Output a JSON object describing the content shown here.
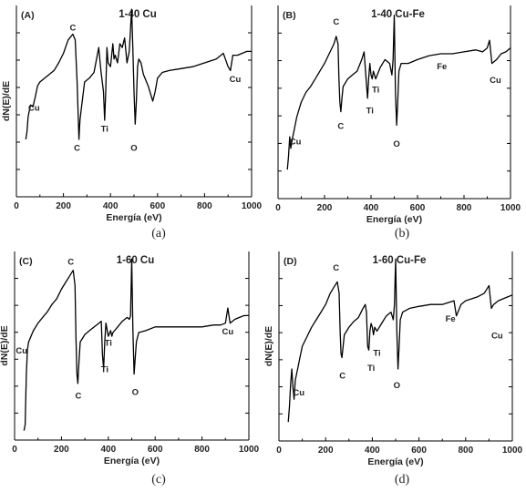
{
  "chart_data": [
    {
      "type": "line",
      "panel": "(A)",
      "title": "1-40 Cu",
      "caption": "(a)",
      "xlabel": "Energía (eV)",
      "ylabel": "dN(E)/dE",
      "xlim": [
        0,
        1000
      ],
      "xticks": [
        0,
        200,
        400,
        600,
        800,
        1000
      ],
      "grid": false,
      "series": [
        {
          "x": [
            40,
            45,
            50,
            60,
            70,
            80,
            90,
            100,
            120,
            140,
            160,
            180,
            200,
            220,
            240,
            250,
            258,
            262,
            266,
            270,
            278,
            290,
            310,
            330,
            350,
            360,
            370,
            375,
            380,
            385,
            390,
            400,
            410,
            415,
            420,
            430,
            440,
            450,
            460,
            470,
            480,
            490,
            495,
            500,
            505,
            510,
            515,
            520,
            530,
            540,
            560,
            580,
            590,
            600,
            620,
            650,
            700,
            750,
            800,
            850,
            880,
            900,
            910,
            920,
            940,
            960,
            980,
            1000
          ],
          "y": [
            0.3,
            0.34,
            0.42,
            0.48,
            0.47,
            0.52,
            0.58,
            0.6,
            0.62,
            0.64,
            0.66,
            0.7,
            0.75,
            0.82,
            0.85,
            0.82,
            0.6,
            0.45,
            0.3,
            0.4,
            0.48,
            0.6,
            0.62,
            0.65,
            0.78,
            0.65,
            0.55,
            0.4,
            0.55,
            0.78,
            0.7,
            0.68,
            0.8,
            0.72,
            0.74,
            0.7,
            0.8,
            0.78,
            0.83,
            0.7,
            0.76,
            0.98,
            0.78,
            0.55,
            0.38,
            0.5,
            0.68,
            0.72,
            0.7,
            0.64,
            0.58,
            0.5,
            0.55,
            0.62,
            0.65,
            0.66,
            0.67,
            0.68,
            0.7,
            0.72,
            0.75,
            0.68,
            0.66,
            0.74,
            0.74,
            0.75,
            0.76,
            0.76
          ]
        }
      ],
      "annotations": [
        {
          "text": "Cu",
          "x": 75,
          "y": 0.45
        },
        {
          "text": "C",
          "x": 240,
          "y": 0.87
        },
        {
          "text": "C",
          "x": 258,
          "y": 0.24
        },
        {
          "text": "Ti",
          "x": 375,
          "y": 0.34
        },
        {
          "text": "O",
          "x": 500,
          "y": 0.24
        },
        {
          "text": "Cu",
          "x": 930,
          "y": 0.6
        }
      ]
    },
    {
      "type": "line",
      "panel": "(B)",
      "title": "1-40 Cu-Fe",
      "caption": "(b)",
      "xlabel": "Energía (eV)",
      "ylabel": "",
      "xlim": [
        0,
        1000
      ],
      "xticks": [
        0,
        200,
        400,
        600,
        800,
        1000
      ],
      "grid": false,
      "series": [
        {
          "x": [
            40,
            45,
            50,
            55,
            60,
            70,
            80,
            90,
            100,
            120,
            140,
            160,
            180,
            200,
            220,
            240,
            250,
            258,
            262,
            266,
            270,
            275,
            280,
            300,
            320,
            340,
            360,
            370,
            380,
            385,
            390,
            395,
            400,
            405,
            410,
            420,
            440,
            460,
            480,
            490,
            495,
            500,
            505,
            510,
            515,
            520,
            530,
            560,
            600,
            650,
            700,
            750,
            800,
            850,
            880,
            900,
            910,
            920,
            940,
            960,
            980,
            1000
          ],
          "y": [
            0.15,
            0.22,
            0.32,
            0.26,
            0.3,
            0.36,
            0.42,
            0.46,
            0.5,
            0.55,
            0.58,
            0.62,
            0.66,
            0.7,
            0.75,
            0.8,
            0.84,
            0.8,
            0.62,
            0.5,
            0.45,
            0.52,
            0.58,
            0.62,
            0.64,
            0.66,
            0.72,
            0.76,
            0.6,
            0.52,
            0.62,
            0.7,
            0.64,
            0.62,
            0.66,
            0.62,
            0.68,
            0.72,
            0.7,
            0.64,
            0.72,
            0.95,
            0.55,
            0.38,
            0.5,
            0.66,
            0.7,
            0.7,
            0.72,
            0.74,
            0.75,
            0.75,
            0.76,
            0.77,
            0.76,
            0.78,
            0.82,
            0.7,
            0.72,
            0.75,
            0.76,
            0.78
          ]
        }
      ],
      "annotations": [
        {
          "text": "Cu",
          "x": 75,
          "y": 0.28
        },
        {
          "text": "C",
          "x": 250,
          "y": 0.9
        },
        {
          "text": "C",
          "x": 270,
          "y": 0.36
        },
        {
          "text": "Ti",
          "x": 420,
          "y": 0.55
        },
        {
          "text": "Ti",
          "x": 395,
          "y": 0.44
        },
        {
          "text": "O",
          "x": 510,
          "y": 0.27
        },
        {
          "text": "Fe",
          "x": 705,
          "y": 0.67
        },
        {
          "text": "Cu",
          "x": 935,
          "y": 0.6
        }
      ]
    },
    {
      "type": "line",
      "panel": "(C)",
      "title": "1-60 Cu",
      "caption": "(c)",
      "xlabel": "Energía (eV)",
      "ylabel": "dN(E)/dE",
      "xlim": [
        0,
        1000
      ],
      "xticks": [
        0,
        200,
        400,
        600,
        800,
        1000
      ],
      "grid": false,
      "series": [
        {
          "x": [
            40,
            45,
            50,
            55,
            60,
            70,
            80,
            100,
            120,
            140,
            160,
            180,
            200,
            220,
            240,
            250,
            258,
            262,
            266,
            270,
            275,
            280,
            300,
            320,
            340,
            360,
            370,
            375,
            380,
            385,
            390,
            400,
            410,
            415,
            420,
            440,
            460,
            480,
            490,
            495,
            500,
            505,
            510,
            515,
            520,
            530,
            560,
            600,
            650,
            700,
            750,
            800,
            850,
            880,
            900,
            910,
            920,
            940,
            960,
            980,
            1000
          ],
          "y": [
            0.05,
            0.08,
            0.35,
            0.48,
            0.52,
            0.55,
            0.58,
            0.62,
            0.65,
            0.68,
            0.72,
            0.75,
            0.8,
            0.84,
            0.88,
            0.9,
            0.82,
            0.55,
            0.35,
            0.3,
            0.42,
            0.52,
            0.56,
            0.58,
            0.6,
            0.62,
            0.63,
            0.45,
            0.38,
            0.52,
            0.62,
            0.55,
            0.58,
            0.55,
            0.57,
            0.6,
            0.63,
            0.65,
            0.64,
            0.66,
            0.96,
            0.58,
            0.35,
            0.44,
            0.52,
            0.57,
            0.58,
            0.6,
            0.6,
            0.6,
            0.6,
            0.6,
            0.61,
            0.61,
            0.62,
            0.7,
            0.62,
            0.64,
            0.65,
            0.66,
            0.66
          ]
        }
      ],
      "annotations": [
        {
          "text": "Cu",
          "x": 30,
          "y": 0.46
        },
        {
          "text": "C",
          "x": 240,
          "y": 0.93
        },
        {
          "text": "C",
          "x": 272,
          "y": 0.22
        },
        {
          "text": "Ti",
          "x": 400,
          "y": 0.5
        },
        {
          "text": "Ti",
          "x": 385,
          "y": 0.36
        },
        {
          "text": "O",
          "x": 515,
          "y": 0.24
        },
        {
          "text": "Cu",
          "x": 910,
          "y": 0.56
        }
      ]
    },
    {
      "type": "line",
      "panel": "(D)",
      "title": "1-60 Cu-Fe",
      "caption": "(d)",
      "xlabel": "Energía (eV)",
      "ylabel": "dN(E)/dE",
      "xlim": [
        0,
        1000
      ],
      "xticks": [
        0,
        200,
        400,
        600,
        800,
        1000
      ],
      "grid": false,
      "series": [
        {
          "x": [
            40,
            45,
            50,
            55,
            60,
            65,
            70,
            80,
            90,
            100,
            120,
            140,
            160,
            180,
            200,
            220,
            240,
            250,
            258,
            262,
            266,
            270,
            275,
            280,
            300,
            320,
            340,
            360,
            370,
            375,
            380,
            385,
            390,
            395,
            400,
            405,
            410,
            420,
            440,
            460,
            480,
            490,
            495,
            500,
            505,
            510,
            515,
            520,
            530,
            560,
            600,
            650,
            700,
            750,
            760,
            780,
            800,
            850,
            880,
            900,
            910,
            920,
            940,
            960,
            980,
            1000
          ],
          "y": [
            0.1,
            0.18,
            0.3,
            0.38,
            0.28,
            0.22,
            0.32,
            0.38,
            0.44,
            0.5,
            0.55,
            0.6,
            0.64,
            0.68,
            0.72,
            0.78,
            0.82,
            0.84,
            0.78,
            0.58,
            0.46,
            0.44,
            0.5,
            0.56,
            0.6,
            0.63,
            0.65,
            0.7,
            0.72,
            0.68,
            0.5,
            0.48,
            0.58,
            0.62,
            0.6,
            0.56,
            0.6,
            0.58,
            0.62,
            0.66,
            0.68,
            0.64,
            0.72,
            0.96,
            0.58,
            0.38,
            0.5,
            0.64,
            0.68,
            0.7,
            0.71,
            0.72,
            0.72,
            0.74,
            0.66,
            0.72,
            0.74,
            0.76,
            0.78,
            0.82,
            0.7,
            0.72,
            0.74,
            0.75,
            0.76,
            0.77
          ]
        }
      ],
      "annotations": [
        {
          "text": "Cu",
          "x": 85,
          "y": 0.24
        },
        {
          "text": "C",
          "x": 245,
          "y": 0.9
        },
        {
          "text": "C",
          "x": 272,
          "y": 0.33
        },
        {
          "text": "Ti",
          "x": 420,
          "y": 0.45
        },
        {
          "text": "Ti",
          "x": 395,
          "y": 0.37
        },
        {
          "text": "O",
          "x": 505,
          "y": 0.28
        },
        {
          "text": "Fe",
          "x": 735,
          "y": 0.63
        },
        {
          "text": "Cu",
          "x": 935,
          "y": 0.54
        }
      ]
    }
  ]
}
